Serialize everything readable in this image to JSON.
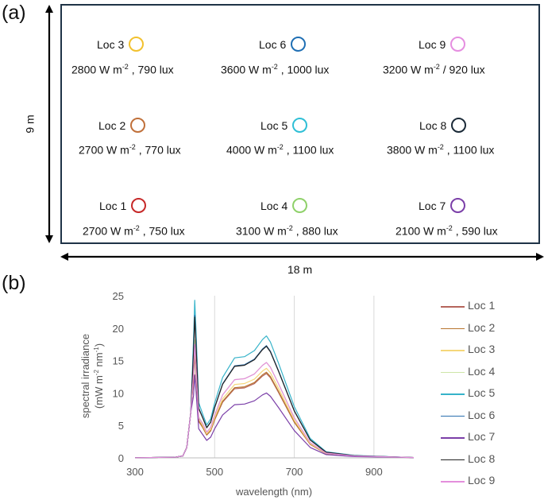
{
  "panel_a": {
    "label": "(a)",
    "height_label": "9 m",
    "width_label": "18 m",
    "locations": [
      {
        "name": "Loc 3",
        "irradiance": "2800 W m",
        "exp": "-2",
        "rest": " , 790 lux",
        "color": "#f2c12e"
      },
      {
        "name": "Loc 6",
        "irradiance": "3600 W m",
        "exp": "-2",
        "rest": " , 1000 lux",
        "color": "#1f6fb4"
      },
      {
        "name": "Loc 9",
        "irradiance": "3200 W m",
        "exp": "-2",
        "rest": " / 920 lux",
        "color": "#e58ee0"
      },
      {
        "name": "Loc 2",
        "irradiance": "2700 W m",
        "exp": "-2",
        "rest": " , 770 lux",
        "color": "#c0703a"
      },
      {
        "name": "Loc 5",
        "irradiance": "4000 W m",
        "exp": "-2",
        "rest": " , 1100 lux",
        "color": "#2fbfd6"
      },
      {
        "name": "Loc 8",
        "irradiance": "3800 W m",
        "exp": "-2",
        "rest": " , 1100 lux",
        "color": "#1b2a38"
      },
      {
        "name": "Loc 1",
        "irradiance": "2700 W m",
        "exp": "-2",
        "rest": " , 750 lux",
        "color": "#c62828"
      },
      {
        "name": "Loc 4",
        "irradiance": "3100 W m",
        "exp": "-2",
        "rest": " , 880 lux",
        "color": "#8fd16a"
      },
      {
        "name": "Loc 7",
        "irradiance": "2100 W m",
        "exp": "-2",
        "rest": " , 590 lux",
        "color": "#7b3fa8"
      }
    ]
  },
  "panel_b": {
    "label": "(b)"
  },
  "chart_data": {
    "type": "line",
    "title": "",
    "xlabel": "wavelength (nm)",
    "ylabel_line1": "spectral irradiance",
    "ylabel_line2": "(mW m",
    "ylabel_exp1": "-2",
    "ylabel_mid": " nm",
    "ylabel_exp2": "-1",
    "ylabel_end": ")",
    "xlim": [
      300,
      1000
    ],
    "ylim": [
      0,
      25
    ],
    "xticks": [
      300,
      500,
      700,
      900
    ],
    "yticks": [
      0,
      5,
      10,
      15,
      20,
      25
    ],
    "grid": "vertical",
    "shape_wavelengths": [
      300,
      400,
      420,
      430,
      440,
      447,
      450,
      453,
      460,
      470,
      480,
      490,
      500,
      520,
      550,
      575,
      600,
      620,
      630,
      640,
      660,
      700,
      740,
      780,
      850,
      1000
    ],
    "series": [
      {
        "name": "Loc 1",
        "color": "#b5655c",
        "peak": 16.0,
        "broad": 13.0
      },
      {
        "name": "Loc 2",
        "color": "#b8742e",
        "peak": 16.5,
        "broad": 13.2
      },
      {
        "name": "Loc 3",
        "color": "#f5d77a",
        "peak": 18.0,
        "broad": 13.8
      },
      {
        "name": "Loc 4",
        "color": "#cde6a8",
        "peak": 18.2,
        "broad": 14.7
      },
      {
        "name": "Loc 5",
        "color": "#36b3c9",
        "peak": 24.3,
        "broad": 18.8
      },
      {
        "name": "Loc 6",
        "color": "#2a6fae",
        "peak": 22.0,
        "broad": 17.3
      },
      {
        "name": "Loc 7",
        "color": "#7b3fa8",
        "peak": 12.8,
        "broad": 10.0
      },
      {
        "name": "Loc 8",
        "color": "#222222",
        "peak": 21.7,
        "broad": 17.2
      },
      {
        "name": "Loc 9",
        "color": "#e48fdc",
        "peak": 17.5,
        "broad": 14.7
      }
    ]
  }
}
